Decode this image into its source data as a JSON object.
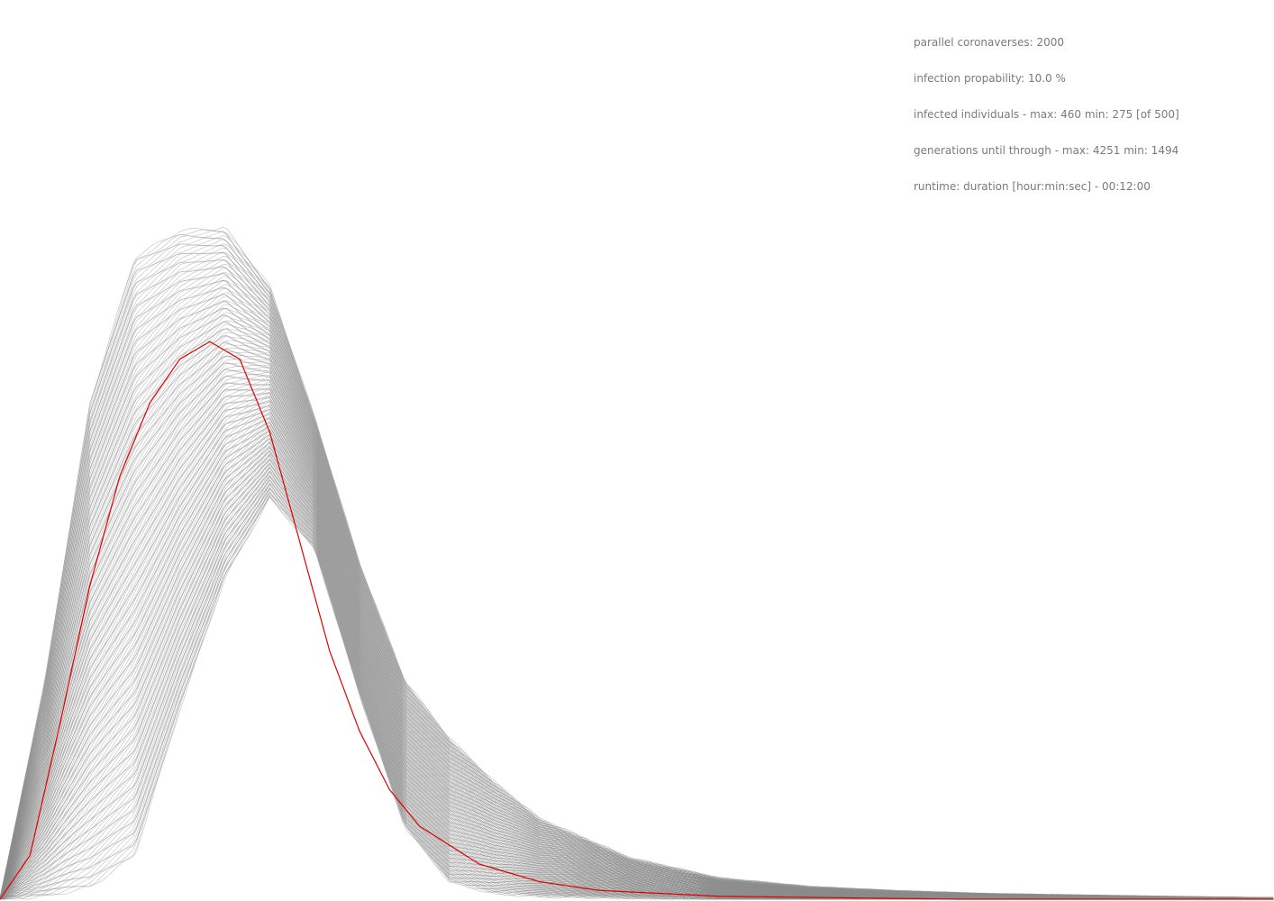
{
  "stats": {
    "parallel": "parallel coronaverses: 2000",
    "probability": "infection propability: 10.0 %",
    "infected": "infected individuals - max: 460 min: 275 [of 500]",
    "generations": "generations until through - max: 4251 min: 1494",
    "runtime": "runtime: duration [hour:min:sec] - 00:12:00"
  },
  "colors": {
    "background": "#ffffff",
    "envelope_lines": "#8c8c8c",
    "mean_curve": "#e00000",
    "text": "#7a7a7a"
  },
  "chart_data": {
    "type": "line",
    "description_series": "many overlapping simulation runs (grey) with mean run (red)",
    "x_unit": "generation",
    "y_unit": "infected individuals",
    "xlim": [
      0,
      4251
    ],
    "ylim": [
      0,
      500
    ],
    "grid": false,
    "legend": "none",
    "series": [
      {
        "role": "envelope-upper",
        "x": [
          0,
          150,
          300,
          450,
          600,
          750,
          900,
          1050,
          1200,
          1350,
          1500,
          1650,
          1800,
          2100,
          2400,
          2700,
          3000,
          3300,
          3600,
          3900,
          4251
        ],
        "y": [
          0,
          150,
          340,
          440,
          458,
          460,
          420,
          330,
          230,
          150,
          110,
          80,
          55,
          28,
          14,
          8,
          5,
          3,
          2,
          1,
          0
        ]
      },
      {
        "role": "envelope-lower",
        "x": [
          0,
          150,
          300,
          450,
          600,
          750,
          900,
          1050,
          1200,
          1350,
          1500,
          1650,
          1800,
          2100,
          2400,
          2700,
          3000,
          3300,
          3600,
          3900,
          4251
        ],
        "y": [
          0,
          2,
          8,
          30,
          130,
          220,
          275,
          240,
          140,
          50,
          12,
          4,
          2,
          1,
          0,
          0,
          0,
          0,
          0,
          0,
          0
        ]
      },
      {
        "role": "mean",
        "x": [
          0,
          100,
          200,
          300,
          400,
          500,
          600,
          700,
          800,
          900,
          1000,
          1100,
          1200,
          1300,
          1400,
          1600,
          1800,
          2000,
          2400,
          2800,
          3200,
          3600,
          4251
        ],
        "y": [
          0,
          30,
          120,
          215,
          290,
          340,
          370,
          382,
          370,
          320,
          245,
          170,
          115,
          75,
          50,
          24,
          12,
          6,
          2,
          1,
          0,
          0,
          0
        ]
      }
    ]
  }
}
